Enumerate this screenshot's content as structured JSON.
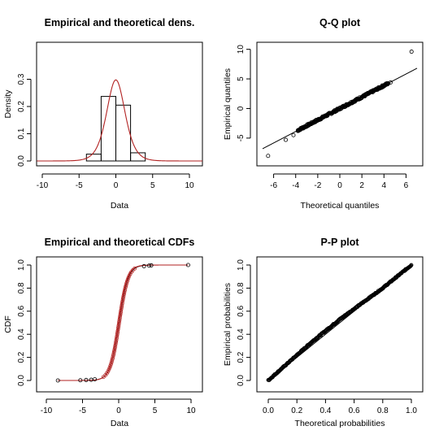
{
  "chart_data": [
    {
      "type": "bar",
      "title": "Empirical and theoretical dens.",
      "xlabel": "Data",
      "ylabel": "Density",
      "xlim": [
        -10,
        10
      ],
      "ylim": [
        0,
        0.4
      ],
      "xticks": [
        "-10",
        "-5",
        "0",
        "5",
        "10"
      ],
      "yticks": [
        "0.0",
        "0.1",
        "0.2",
        "0.3"
      ],
      "series": [
        {
          "values": [
            {
              "x0": -4,
              "x1": -2,
              "y": 0.025
            },
            {
              "x0": -2,
              "x1": 0,
              "y": 0.237
            },
            {
              "x0": 0,
              "x1": 2,
              "y": 0.205
            },
            {
              "x0": 2,
              "x1": 4,
              "y": 0.03
            }
          ]
        }
      ],
      "theoretical_density": {
        "location": 0,
        "scale": 0.84,
        "color": "#b22222"
      }
    },
    {
      "type": "scatter",
      "title": "Q-Q plot",
      "xlabel": "Theoretical quantiles",
      "ylabel": "Empirical quantiles",
      "xlim": [
        -7,
        7
      ],
      "ylim": [
        -9,
        10.5
      ],
      "xticks": [
        "-6",
        "-4",
        "-2",
        "0",
        "2",
        "4",
        "6"
      ],
      "yticks": [
        "-5",
        "0",
        "5",
        "10"
      ],
      "extreme_points": [
        [
          -6.5,
          -8.0
        ],
        [
          -4.9,
          -5.3
        ],
        [
          -4.2,
          -4.5
        ],
        [
          -3.8,
          -3.8
        ],
        [
          4.6,
          4.4
        ],
        [
          6.5,
          9.6
        ]
      ],
      "reference_line": [
        [
          -7,
          -6.8
        ],
        [
          7,
          6.8
        ]
      ]
    },
    {
      "type": "line",
      "title": "Empirical and theoretical CDFs",
      "xlabel": "Data",
      "ylabel": "CDF",
      "xlim": [
        -10,
        10
      ],
      "ylim": [
        0,
        1
      ],
      "xticks": [
        "-10",
        "-5",
        "0",
        "5",
        "10"
      ],
      "yticks": [
        "0.0",
        "0.2",
        "0.4",
        "0.6",
        "0.8",
        "1.0"
      ],
      "extreme_points": [
        [
          -8.4,
          0.0
        ],
        [
          -5.3,
          0.002
        ],
        [
          -4.5,
          0.004
        ],
        [
          -3.8,
          0.006
        ],
        [
          -3.3,
          0.01
        ],
        [
          3.5,
          0.99
        ],
        [
          4.2,
          0.995
        ],
        [
          4.5,
          0.997
        ],
        [
          9.6,
          1.0
        ]
      ],
      "theoretical_color": "#b22222"
    },
    {
      "type": "scatter",
      "title": "P-P plot",
      "xlabel": "Theoretical probabilities",
      "ylabel": "Empirical probabilities",
      "xlim": [
        0,
        1
      ],
      "ylim": [
        0,
        1
      ],
      "xticks": [
        "0.0",
        "0.2",
        "0.4",
        "0.6",
        "0.8",
        "1.0"
      ],
      "yticks": [
        "0.0",
        "0.2",
        "0.4",
        "0.6",
        "0.8",
        "1.0"
      ],
      "curve_deviation": [
        [
          0.0,
          0.0
        ],
        [
          0.1,
          0.11
        ],
        [
          0.2,
          0.22
        ],
        [
          0.3,
          0.33
        ],
        [
          0.4,
          0.43
        ],
        [
          0.5,
          0.53
        ],
        [
          0.6,
          0.62
        ],
        [
          0.7,
          0.71
        ],
        [
          0.8,
          0.8
        ],
        [
          0.9,
          0.9
        ],
        [
          1.0,
          1.0
        ]
      ],
      "reference_line": [
        [
          0,
          0
        ],
        [
          1,
          1
        ]
      ]
    }
  ]
}
